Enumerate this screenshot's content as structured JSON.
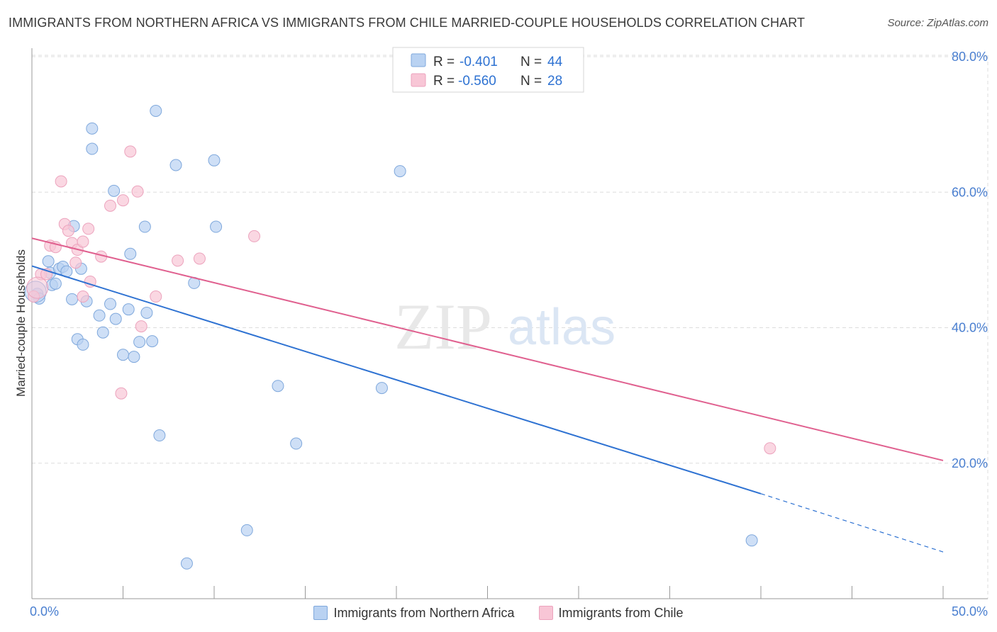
{
  "title": "IMMIGRANTS FROM NORTHERN AFRICA VS IMMIGRANTS FROM CHILE MARRIED-COUPLE HOUSEHOLDS CORRELATION CHART",
  "source": "Source: ZipAtlas.com",
  "watermark": {
    "zip": "ZIP",
    "atlas": "atlas"
  },
  "colors": {
    "blue_fill": "#b9d2f2",
    "blue_stroke": "#7fa8dc",
    "blue_line": "#2e72d2",
    "pink_fill": "#f8c6d6",
    "pink_stroke": "#eca3bd",
    "pink_line": "#e0608f",
    "axis_text": "#4a7fd0",
    "grid": "#dddddd"
  },
  "legend": {
    "r_label": "R =",
    "n_label": "N =",
    "series": [
      {
        "r": "-0.401",
        "n": "44"
      },
      {
        "r": "-0.560",
        "n": "28"
      }
    ]
  },
  "chart_data": {
    "type": "scatter",
    "title": "IMMIGRANTS FROM NORTHERN AFRICA VS IMMIGRANTS FROM CHILE MARRIED-COUPLE HOUSEHOLDS CORRELATION CHART",
    "xlabel": "",
    "ylabel": "Married-couple Households",
    "xlim": [
      0,
      50
    ],
    "ylim": [
      0,
      80
    ],
    "x_tick_labels": [
      "0.0%",
      "50.0%"
    ],
    "y_tick_labels": [
      "20.0%",
      "40.0%",
      "60.0%",
      "80.0%"
    ],
    "y_ticks": [
      20,
      40,
      60,
      80
    ],
    "grid": true,
    "legend_position": "bottom",
    "series": [
      {
        "name": "Immigrants from Northern Africa",
        "color": "blue",
        "r": -0.401,
        "n": 44,
        "trend": {
          "x0": 0,
          "y0": 49.1,
          "x1": 40,
          "y1": 15.5,
          "dashed_to_x": 50,
          "dashed_to_y": 6.9
        },
        "points": [
          [
            0.3,
            45.0
          ],
          [
            0.4,
            44.3
          ],
          [
            0.9,
            49.8
          ],
          [
            1.0,
            48.1
          ],
          [
            1.1,
            46.3
          ],
          [
            1.3,
            46.5
          ],
          [
            1.5,
            48.7
          ],
          [
            1.7,
            49.0
          ],
          [
            1.9,
            48.3
          ],
          [
            2.2,
            44.2
          ],
          [
            2.3,
            55.0
          ],
          [
            2.5,
            38.3
          ],
          [
            2.7,
            48.7
          ],
          [
            2.8,
            37.5
          ],
          [
            3.0,
            43.9
          ],
          [
            3.3,
            69.4
          ],
          [
            3.3,
            66.4
          ],
          [
            3.7,
            41.8
          ],
          [
            3.9,
            39.3
          ],
          [
            4.3,
            43.5
          ],
          [
            4.5,
            60.2
          ],
          [
            4.6,
            41.3
          ],
          [
            5.0,
            36.0
          ],
          [
            5.3,
            42.7
          ],
          [
            5.4,
            50.9
          ],
          [
            5.6,
            35.7
          ],
          [
            5.9,
            37.9
          ],
          [
            6.2,
            54.9
          ],
          [
            6.3,
            42.2
          ],
          [
            6.6,
            38.0
          ],
          [
            6.8,
            72.0
          ],
          [
            7.0,
            24.1
          ],
          [
            7.9,
            64.0
          ],
          [
            8.5,
            5.2
          ],
          [
            8.9,
            46.6
          ],
          [
            10.0,
            64.7
          ],
          [
            10.1,
            54.9
          ],
          [
            11.8,
            10.1
          ],
          [
            13.5,
            31.4
          ],
          [
            14.5,
            22.9
          ],
          [
            19.2,
            31.1
          ],
          [
            20.2,
            63.1
          ],
          [
            39.5,
            8.6
          ],
          [
            0.2,
            45.3
          ]
        ]
      },
      {
        "name": "Immigrants from Chile",
        "color": "pink",
        "r": -0.56,
        "n": 28,
        "trend": {
          "x0": 0,
          "y0": 53.2,
          "x1": 50,
          "y1": 20.4
        },
        "points": [
          [
            0.1,
            44.6
          ],
          [
            0.5,
            47.9
          ],
          [
            0.8,
            47.9
          ],
          [
            1.0,
            52.1
          ],
          [
            1.3,
            51.9
          ],
          [
            1.6,
            61.6
          ],
          [
            1.8,
            55.3
          ],
          [
            2.0,
            54.3
          ],
          [
            2.2,
            52.5
          ],
          [
            2.4,
            49.6
          ],
          [
            2.5,
            51.5
          ],
          [
            2.8,
            52.7
          ],
          [
            2.8,
            44.6
          ],
          [
            3.1,
            54.6
          ],
          [
            3.2,
            46.8
          ],
          [
            3.8,
            50.5
          ],
          [
            4.3,
            58.0
          ],
          [
            4.9,
            30.3
          ],
          [
            5.0,
            58.8
          ],
          [
            5.4,
            66.0
          ],
          [
            5.8,
            60.1
          ],
          [
            6.0,
            40.2
          ],
          [
            6.8,
            44.6
          ],
          [
            8.0,
            49.9
          ],
          [
            9.2,
            50.2
          ],
          [
            12.2,
            53.5
          ],
          [
            40.5,
            22.2
          ],
          [
            0.3,
            45.9
          ]
        ]
      }
    ]
  }
}
